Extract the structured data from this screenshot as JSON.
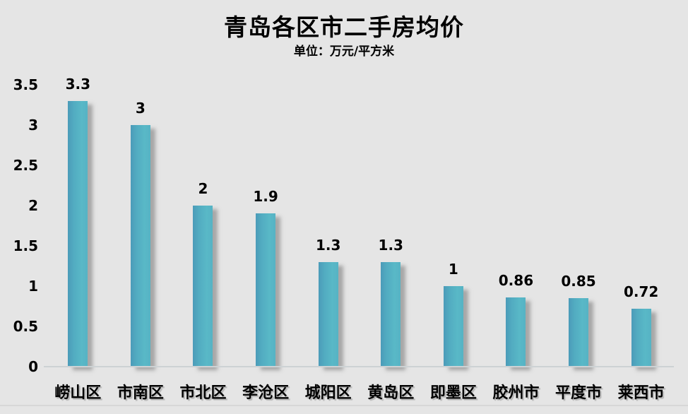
{
  "page": {
    "background_color": "#E5E5E5"
  },
  "chart_data": {
    "type": "bar",
    "title": "青岛各区市二手房均价",
    "subtitle": "单位：万元/平方米",
    "categories": [
      "崂山区",
      "市南区",
      "市北区",
      "李沧区",
      "城阳区",
      "黄岛区",
      "即墨区",
      "胶州市",
      "平度市",
      "莱西市"
    ],
    "values": [
      3.3,
      3,
      2,
      1.9,
      1.3,
      1.3,
      1,
      0.86,
      0.85,
      0.72
    ],
    "value_labels": [
      "3.3",
      "3",
      "2",
      "1.9",
      "1.3",
      "1.3",
      "1",
      "0.86",
      "0.85",
      "0.72"
    ],
    "xlabel": "",
    "ylabel": "",
    "ylim": [
      0,
      3.5
    ],
    "ytick_step": 0.5,
    "yticks": [
      "3.5",
      "3",
      "2.5",
      "2",
      "1.5",
      "1",
      "0.5",
      "0"
    ],
    "grid": false,
    "legend": "none",
    "bar_color": "#52AFC2",
    "bar_gradient_left": "#4B9BB9",
    "bar_gradient_right": "#59B8C7",
    "bar_shadow_color": "rgba(105,105,105,0.5)",
    "axis_line_color": "#CDD2D4",
    "text_color": "#000000"
  }
}
